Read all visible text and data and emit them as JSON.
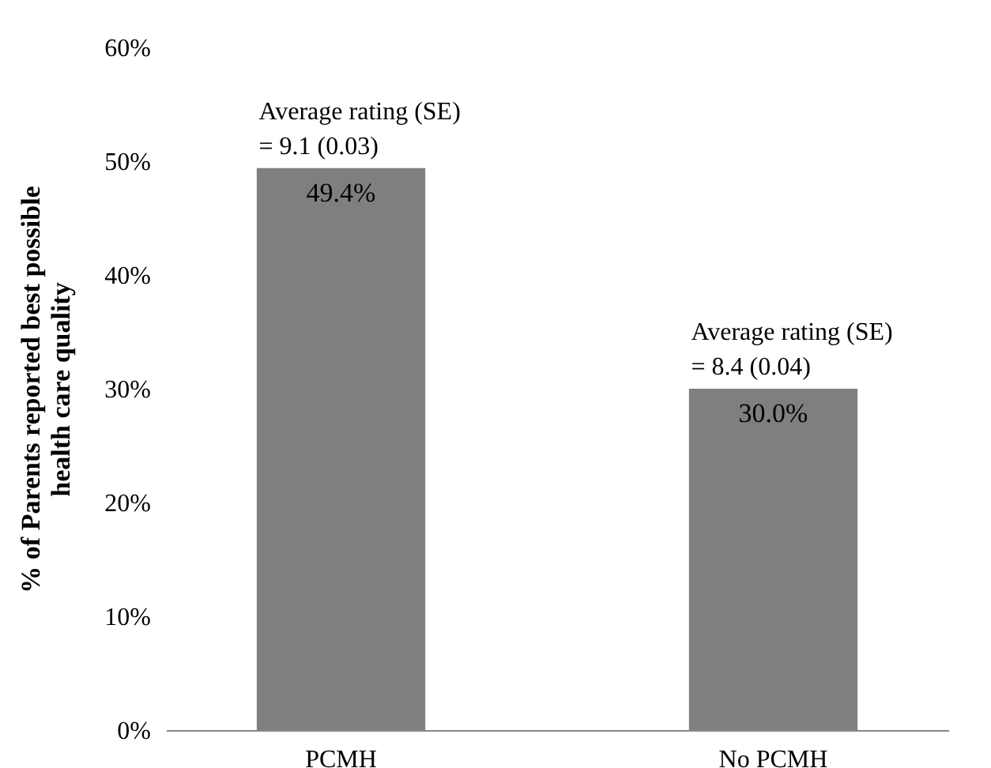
{
  "chart_data": {
    "type": "bar",
    "ylabel": "% of Parents reported  best possible\nhealth care quality",
    "categories": [
      "PCMH",
      "No PCMH"
    ],
    "values": [
      49.4,
      30.0
    ],
    "value_labels": [
      "49.4%",
      "30.0%"
    ],
    "color": "#7f7f7f",
    "ylim": [
      0,
      60
    ],
    "yticks": [
      {
        "value": 0,
        "label": "0%"
      },
      {
        "value": 10,
        "label": "10%"
      },
      {
        "value": 20,
        "label": "20%"
      },
      {
        "value": 30,
        "label": "30%"
      },
      {
        "value": 40,
        "label": "40%"
      },
      {
        "value": 50,
        "label": "50%"
      },
      {
        "value": 60,
        "label": "60%"
      }
    ],
    "annotations": [
      {
        "text": "Average rating (SE)\n= 9.1 (0.03)",
        "x": "PCMH",
        "y": 49.4
      },
      {
        "text": "Average rating (SE)\n= 8.4 (0.04)",
        "x": "No PCMH",
        "y": 30.0
      }
    ],
    "grid": false
  }
}
